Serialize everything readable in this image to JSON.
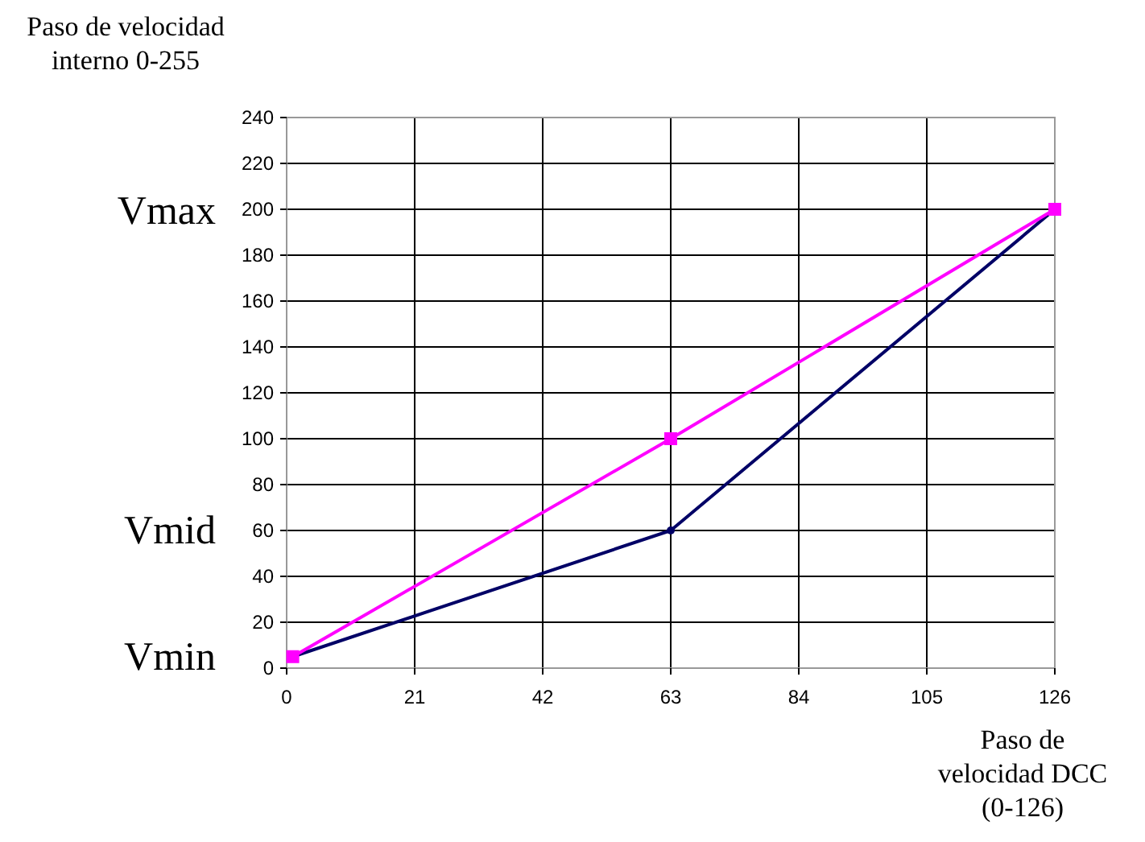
{
  "chart_data": {
    "type": "line",
    "ylabel": "Paso de velocidad\ninterno 0-255",
    "xlabel": "Paso de\nvelocidad DCC\n(0-126)",
    "series": [
      {
        "color": "#000066",
        "marker": "circle",
        "x": [
          1,
          63,
          126
        ],
        "values": [
          5,
          60,
          200
        ]
      },
      {
        "color": "#ff00ff",
        "marker": "square",
        "x": [
          1,
          63,
          126
        ],
        "values": [
          5,
          100,
          200
        ]
      }
    ],
    "xlim": [
      0,
      126
    ],
    "xticks": [
      0,
      21,
      42,
      63,
      84,
      105,
      126
    ],
    "ylim": [
      0,
      240
    ],
    "yticks": [
      0,
      20,
      40,
      60,
      80,
      100,
      120,
      140,
      160,
      180,
      200,
      220,
      240
    ],
    "grid": true,
    "annotations": [
      "Vmax",
      "Vmid",
      "Vmin"
    ]
  }
}
